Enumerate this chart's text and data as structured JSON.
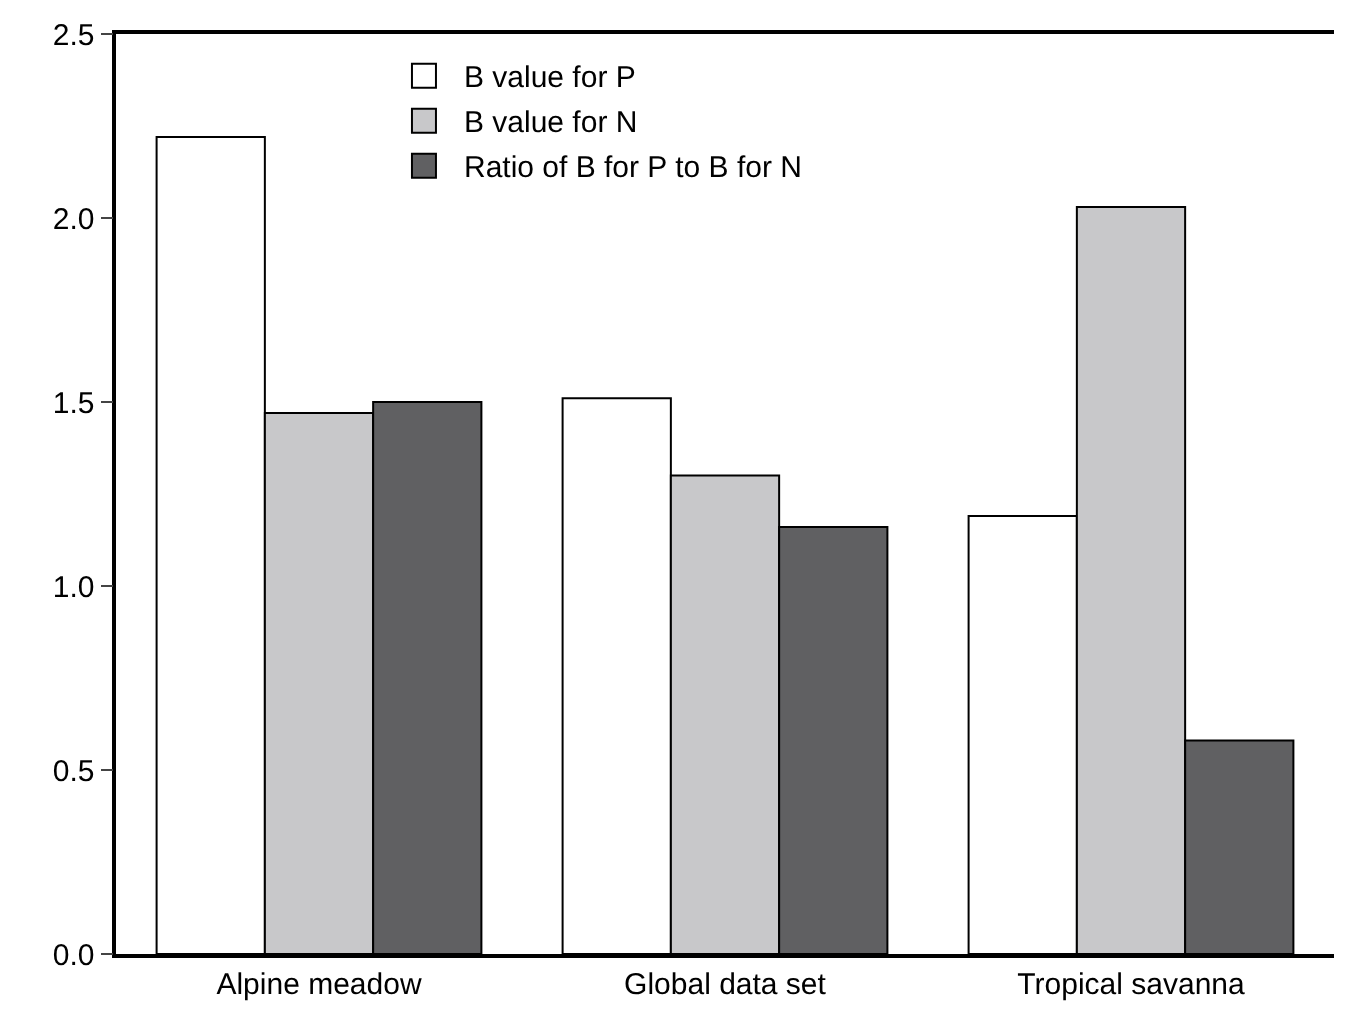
{
  "chart_data": {
    "type": "bar",
    "categories": [
      "Alpine meadow",
      "Global data set",
      "Tropical savanna"
    ],
    "series": [
      {
        "name": "B value for P",
        "color": "#ffffff",
        "values": [
          2.22,
          1.51,
          1.19
        ]
      },
      {
        "name": "B value for N",
        "color": "#c8c8ca",
        "values": [
          1.47,
          1.3,
          2.03
        ]
      },
      {
        "name": "Ratio of B for P to B for N",
        "color": "#606062",
        "values": [
          1.5,
          1.16,
          0.58
        ]
      }
    ],
    "ylim": [
      0,
      2.5
    ],
    "yticks": [
      {
        "value": 0,
        "label": "0.0"
      },
      {
        "value": 0.5,
        "label": "0.5"
      },
      {
        "value": 1,
        "label": "1.0"
      },
      {
        "value": 1.5,
        "label": "1.5"
      },
      {
        "value": 2,
        "label": "2.0"
      },
      {
        "value": 2.5,
        "label": "2.5"
      }
    ],
    "grid": false,
    "legend": "top"
  }
}
